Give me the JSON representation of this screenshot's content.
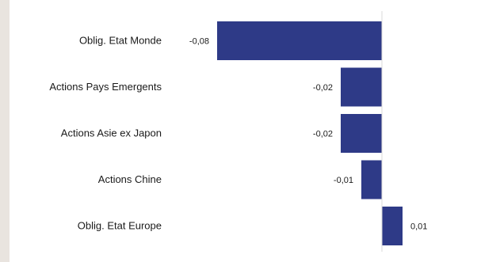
{
  "chart_data": {
    "type": "bar",
    "orientation": "horizontal",
    "title": "",
    "xlabel": "",
    "ylabel": "",
    "categories": [
      "Oblig. Etat Monde",
      "Actions Pays Emergents",
      "Actions Asie ex Japon",
      "Actions Chine",
      "Oblig. Etat Europe"
    ],
    "values": [
      -0.08,
      -0.02,
      -0.02,
      -0.01,
      0.01
    ],
    "value_labels": [
      "-0,08",
      "-0,02",
      "-0,02",
      "-0,01",
      "0,01"
    ],
    "bar_color": "#2e3a87",
    "axis_line_color": "#d9d9d9",
    "grid": false,
    "legend": "none"
  }
}
